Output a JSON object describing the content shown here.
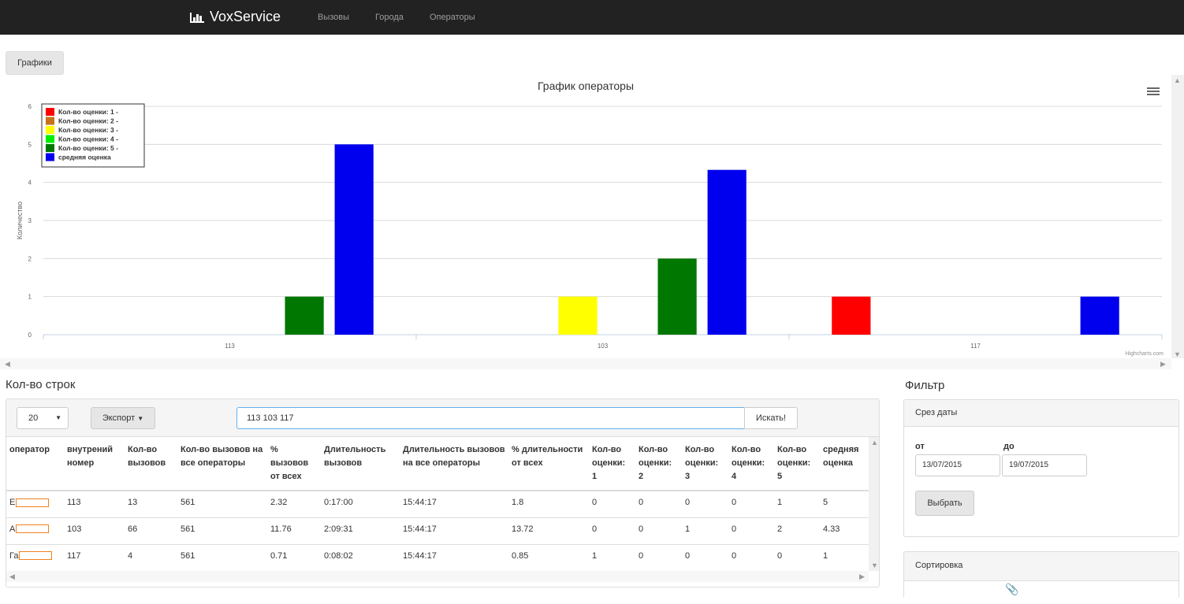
{
  "navbar": {
    "brand": "VoxService",
    "links": [
      "Вызовы",
      "Города",
      "Операторы"
    ]
  },
  "charts_button": "Графики",
  "chart_data": {
    "type": "bar",
    "title": "График операторы",
    "ylabel": "Количество",
    "xlabel": "",
    "categories": [
      "113",
      "103",
      "117"
    ],
    "ylim": [
      0,
      6
    ],
    "yticks": [
      0,
      1,
      2,
      3,
      4,
      5,
      6
    ],
    "grid": true,
    "legend_position": "top-left",
    "credit": "Highcharts.com",
    "series": [
      {
        "name": "Кол-во оценки: 1 -",
        "color": "#ff0000",
        "values": [
          0,
          0,
          1
        ]
      },
      {
        "name": "Кол-во оценки: 2 -",
        "color": "#c7731c",
        "values": [
          0,
          0,
          0
        ]
      },
      {
        "name": "Кол-во оценки: 3 -",
        "color": "#ffff00",
        "values": [
          0,
          1,
          0
        ]
      },
      {
        "name": "Кол-во оценки: 4 -",
        "color": "#00ee00",
        "values": [
          0,
          0,
          0
        ]
      },
      {
        "name": "Кол-во оценки: 5 -",
        "color": "#007700",
        "values": [
          1,
          2,
          0
        ]
      },
      {
        "name": "средняя оценка",
        "color": "#0000ee",
        "values": [
          5,
          4.33,
          1
        ]
      }
    ]
  },
  "rows_title": "Кол-во строк",
  "table_controls": {
    "page_size": "20",
    "export_label": "Экспорт",
    "search_value": "113 103 117",
    "search_button": "Искать!"
  },
  "table": {
    "headers": [
      "оператор",
      "внутрений номер",
      "Кол-во вызовов",
      "Кол-во вызовов на все операторы",
      "% вызовов от всех",
      "Длительность вызовов",
      "Длительность вызовов на все операторы",
      "% длительности от всех",
      "Кол-во оценки: 1",
      "Кол-во оценки: 2",
      "Кол-во оценки: 3",
      "Кол-во оценки: 4",
      "Кол-во оценки: 5",
      "средняя оценка"
    ],
    "rows": [
      {
        "operator": "Е",
        "cells": [
          "113",
          "13",
          "561",
          "2.32",
          "0:17:00",
          "15:44:17",
          "1.8",
          "0",
          "0",
          "0",
          "0",
          "1",
          "5"
        ]
      },
      {
        "operator": "А",
        "cells": [
          "103",
          "66",
          "561",
          "11.76",
          "2:09:31",
          "15:44:17",
          "13.72",
          "0",
          "0",
          "1",
          "0",
          "2",
          "4.33"
        ]
      },
      {
        "operator": "Га",
        "cells": [
          "117",
          "4",
          "561",
          "0.71",
          "0:08:02",
          "15:44:17",
          "0.85",
          "1",
          "0",
          "0",
          "0",
          "0",
          "1"
        ]
      }
    ]
  },
  "filter": {
    "title": "Фильтр",
    "date_panel_title": "Срез даты",
    "from_label": "от",
    "to_label": "до",
    "from_value": "13/07/2015",
    "to_value": "19/07/2015",
    "choose_button": "Выбрать",
    "sort_title": "Сортировка"
  },
  "colors": {
    "navbar": "#222222",
    "accent_focus": "#66afe9"
  }
}
